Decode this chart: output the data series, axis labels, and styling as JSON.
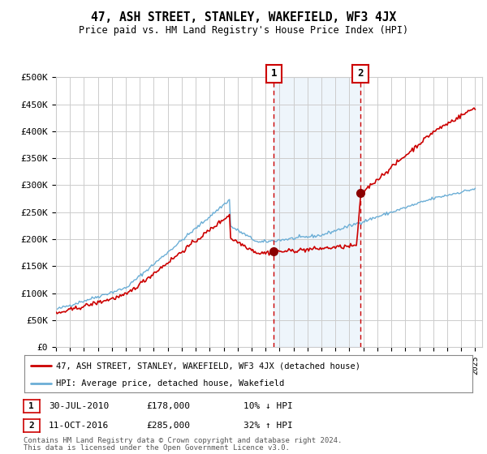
{
  "title": "47, ASH STREET, STANLEY, WAKEFIELD, WF3 4JX",
  "subtitle": "Price paid vs. HM Land Registry's House Price Index (HPI)",
  "ylabel_ticks": [
    "£0",
    "£50K",
    "£100K",
    "£150K",
    "£200K",
    "£250K",
    "£300K",
    "£350K",
    "£400K",
    "£450K",
    "£500K"
  ],
  "ytick_vals": [
    0,
    50000,
    100000,
    150000,
    200000,
    250000,
    300000,
    350000,
    400000,
    450000,
    500000
  ],
  "ylim": [
    0,
    500000
  ],
  "xlim_start": 1995.0,
  "xlim_end": 2025.5,
  "sale1_date": 2010.58,
  "sale1_price": 178000,
  "sale1_label": "1",
  "sale1_col1": "30-JUL-2010",
  "sale1_col2": "£178,000",
  "sale1_col3": "10% ↓ HPI",
  "sale2_date": 2016.79,
  "sale2_price": 285000,
  "sale2_label": "2",
  "sale2_col1": "11-OCT-2016",
  "sale2_col2": "£285,000",
  "sale2_col3": "32% ↑ HPI",
  "hpi_color": "#6baed6",
  "price_color": "#cc0000",
  "sale_marker_color": "#8b0000",
  "shade_color": "#d6e8f5",
  "dashed_line_color": "#cc0000",
  "grid_color": "#cccccc",
  "background_color": "#ffffff",
  "legend1_label": "47, ASH STREET, STANLEY, WAKEFIELD, WF3 4JX (detached house)",
  "legend2_label": "HPI: Average price, detached house, Wakefield",
  "footer_line1": "Contains HM Land Registry data © Crown copyright and database right 2024.",
  "footer_line2": "This data is licensed under the Open Government Licence v3.0."
}
